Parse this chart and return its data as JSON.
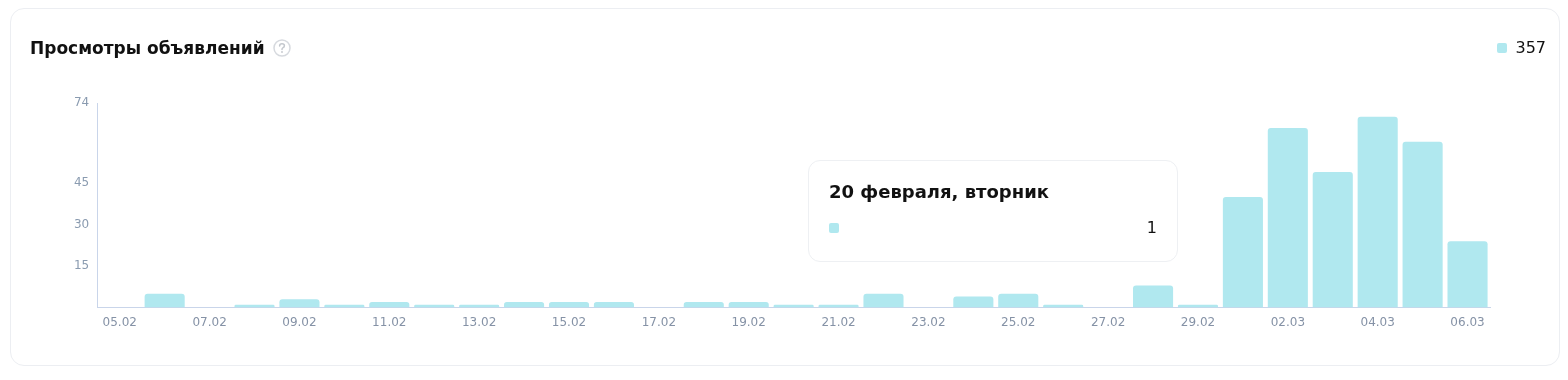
{
  "chart_data": {
    "type": "bar",
    "title": "Просмотры объявлений",
    "categories": [
      "05.02",
      null,
      "07.02",
      null,
      "09.02",
      null,
      "11.02",
      null,
      "13.02",
      null,
      "15.02",
      null,
      "17.02",
      null,
      "19.02",
      null,
      "21.02",
      null,
      "23.02",
      null,
      "25.02",
      null,
      "27.02",
      null,
      "29.02",
      null,
      "02.03",
      null,
      "04.03",
      null,
      "06.03"
    ],
    "values": [
      0,
      5,
      0,
      1,
      3,
      1,
      2,
      1,
      1,
      2,
      2,
      2,
      0,
      2,
      2,
      1,
      1,
      5,
      0,
      4,
      5,
      1,
      0,
      8,
      1,
      40,
      65,
      49,
      69,
      60,
      24
    ],
    "color": "#b0e8ef",
    "ylim": [
      0,
      74
    ],
    "yticks": [
      15,
      30,
      45,
      74
    ],
    "grid": false,
    "annotations": [
      "357",
      "20 февраля, вторник",
      "1"
    ]
  }
}
